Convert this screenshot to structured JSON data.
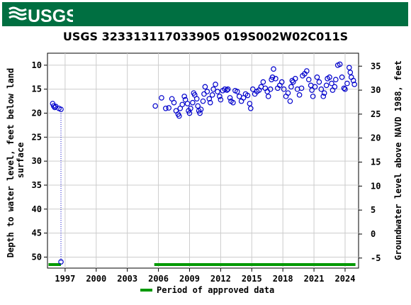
{
  "header": {
    "brand": "USGS"
  },
  "chart_data": {
    "type": "scatter",
    "title": "USGS 323313117033905 019S002W02C011S",
    "ylabel_left": "Depth to water level, feet below land surface",
    "ylabel_right": "Groundwater level above NAVD 1988, feet",
    "x_ticks": [
      "1997",
      "2000",
      "2003",
      "2006",
      "2009",
      "2012",
      "2015",
      "2018",
      "2021",
      "2024"
    ],
    "y_left_ticks": [
      "10",
      "15",
      "20",
      "25",
      "30",
      "35",
      "40",
      "45",
      "50"
    ],
    "y_right_ticks": [
      "35",
      "30",
      "25",
      "20",
      "15",
      "10",
      "5",
      "0",
      "-5"
    ],
    "ylim_left": [
      52.3,
      7.5
    ],
    "xlim": [
      1995.3,
      2025.3
    ],
    "series": [
      {
        "name": "Depth to water level",
        "points": [
          [
            1995.8,
            18.0
          ],
          [
            1995.9,
            18.5
          ],
          [
            1996.0,
            18.8
          ],
          [
            1996.1,
            18.6
          ],
          [
            1996.4,
            19.0
          ],
          [
            1996.6,
            19.2
          ],
          [
            1996.6,
            51.0
          ],
          [
            2005.7,
            18.5
          ],
          [
            2006.3,
            16.8
          ],
          [
            2006.7,
            19.0
          ],
          [
            2007.0,
            18.9
          ],
          [
            2007.3,
            17.0
          ],
          [
            2007.5,
            17.8
          ],
          [
            2007.7,
            19.5
          ],
          [
            2007.9,
            20.2
          ],
          [
            2008.0,
            20.6
          ],
          [
            2008.1,
            19.0
          ],
          [
            2008.3,
            18.2
          ],
          [
            2008.5,
            16.5
          ],
          [
            2008.6,
            17.2
          ],
          [
            2008.8,
            18.0
          ],
          [
            2008.9,
            19.5
          ],
          [
            2009.0,
            20.0
          ],
          [
            2009.1,
            19.0
          ],
          [
            2009.3,
            17.8
          ],
          [
            2009.4,
            15.8
          ],
          [
            2009.5,
            16.2
          ],
          [
            2009.7,
            17.0
          ],
          [
            2009.8,
            18.5
          ],
          [
            2009.9,
            19.5
          ],
          [
            2010.0,
            20.0
          ],
          [
            2010.1,
            19.2
          ],
          [
            2010.3,
            17.5
          ],
          [
            2010.4,
            16.0
          ],
          [
            2010.5,
            14.5
          ],
          [
            2010.7,
            15.5
          ],
          [
            2010.9,
            17.0
          ],
          [
            2011.0,
            17.8
          ],
          [
            2011.2,
            16.2
          ],
          [
            2011.3,
            15.0
          ],
          [
            2011.5,
            14.0
          ],
          [
            2011.7,
            15.5
          ],
          [
            2011.9,
            16.5
          ],
          [
            2012.0,
            17.2
          ],
          [
            2012.2,
            15.3
          ],
          [
            2012.4,
            15.0
          ],
          [
            2012.6,
            15.2
          ],
          [
            2012.7,
            15.0
          ],
          [
            2012.9,
            16.8
          ],
          [
            2013.0,
            17.5
          ],
          [
            2013.2,
            17.8
          ],
          [
            2013.4,
            15.3
          ],
          [
            2013.6,
            15.5
          ],
          [
            2013.8,
            16.5
          ],
          [
            2014.0,
            17.5
          ],
          [
            2014.2,
            16.8
          ],
          [
            2014.4,
            16.0
          ],
          [
            2014.6,
            16.3
          ],
          [
            2014.8,
            18.0
          ],
          [
            2014.9,
            19.0
          ],
          [
            2015.1,
            15.0
          ],
          [
            2015.3,
            16.0
          ],
          [
            2015.5,
            15.5
          ],
          [
            2015.7,
            15.2
          ],
          [
            2015.9,
            14.5
          ],
          [
            2016.1,
            13.5
          ],
          [
            2016.3,
            14.8
          ],
          [
            2016.5,
            15.5
          ],
          [
            2016.6,
            16.5
          ],
          [
            2016.8,
            15.0
          ],
          [
            2016.9,
            13.0
          ],
          [
            2017.0,
            12.5
          ],
          [
            2017.1,
            10.8
          ],
          [
            2017.3,
            12.8
          ],
          [
            2017.5,
            14.8
          ],
          [
            2017.7,
            14.2
          ],
          [
            2017.9,
            13.5
          ],
          [
            2018.1,
            15.0
          ],
          [
            2018.3,
            16.5
          ],
          [
            2018.5,
            15.8
          ],
          [
            2018.7,
            17.5
          ],
          [
            2018.8,
            14.5
          ],
          [
            2018.9,
            13.2
          ],
          [
            2019.0,
            13.5
          ],
          [
            2019.2,
            12.8
          ],
          [
            2019.4,
            15.0
          ],
          [
            2019.6,
            16.2
          ],
          [
            2019.8,
            14.8
          ],
          [
            2019.9,
            12.2
          ],
          [
            2020.1,
            11.8
          ],
          [
            2020.3,
            11.2
          ],
          [
            2020.5,
            13.0
          ],
          [
            2020.7,
            14.2
          ],
          [
            2020.8,
            15.2
          ],
          [
            2020.9,
            16.5
          ],
          [
            2021.1,
            14.5
          ],
          [
            2021.3,
            12.5
          ],
          [
            2021.5,
            13.5
          ],
          [
            2021.7,
            15.0
          ],
          [
            2021.9,
            16.5
          ],
          [
            2022.0,
            15.8
          ],
          [
            2022.2,
            14.2
          ],
          [
            2022.3,
            12.8
          ],
          [
            2022.5,
            12.5
          ],
          [
            2022.7,
            13.8
          ],
          [
            2022.8,
            15.2
          ],
          [
            2023.0,
            14.5
          ],
          [
            2023.1,
            13.0
          ],
          [
            2023.3,
            10.0
          ],
          [
            2023.5,
            9.8
          ],
          [
            2023.7,
            12.5
          ],
          [
            2023.9,
            14.8
          ],
          [
            2024.0,
            15.0
          ],
          [
            2024.2,
            13.8
          ],
          [
            2024.4,
            10.5
          ],
          [
            2024.5,
            11.5
          ],
          [
            2024.6,
            12.5
          ],
          [
            2024.8,
            13.2
          ],
          [
            2024.9,
            14.0
          ]
        ]
      }
    ],
    "approved_periods": [
      [
        1995.4,
        1996.6
      ],
      [
        2005.6,
        2025.0
      ]
    ],
    "legend": {
      "label": "Period of approved data",
      "position": "bottom"
    },
    "colors": {
      "points": "#0000cc",
      "approved": "#009900",
      "grid": "#cccccc",
      "banner": "#006f41"
    },
    "grid": true
  }
}
